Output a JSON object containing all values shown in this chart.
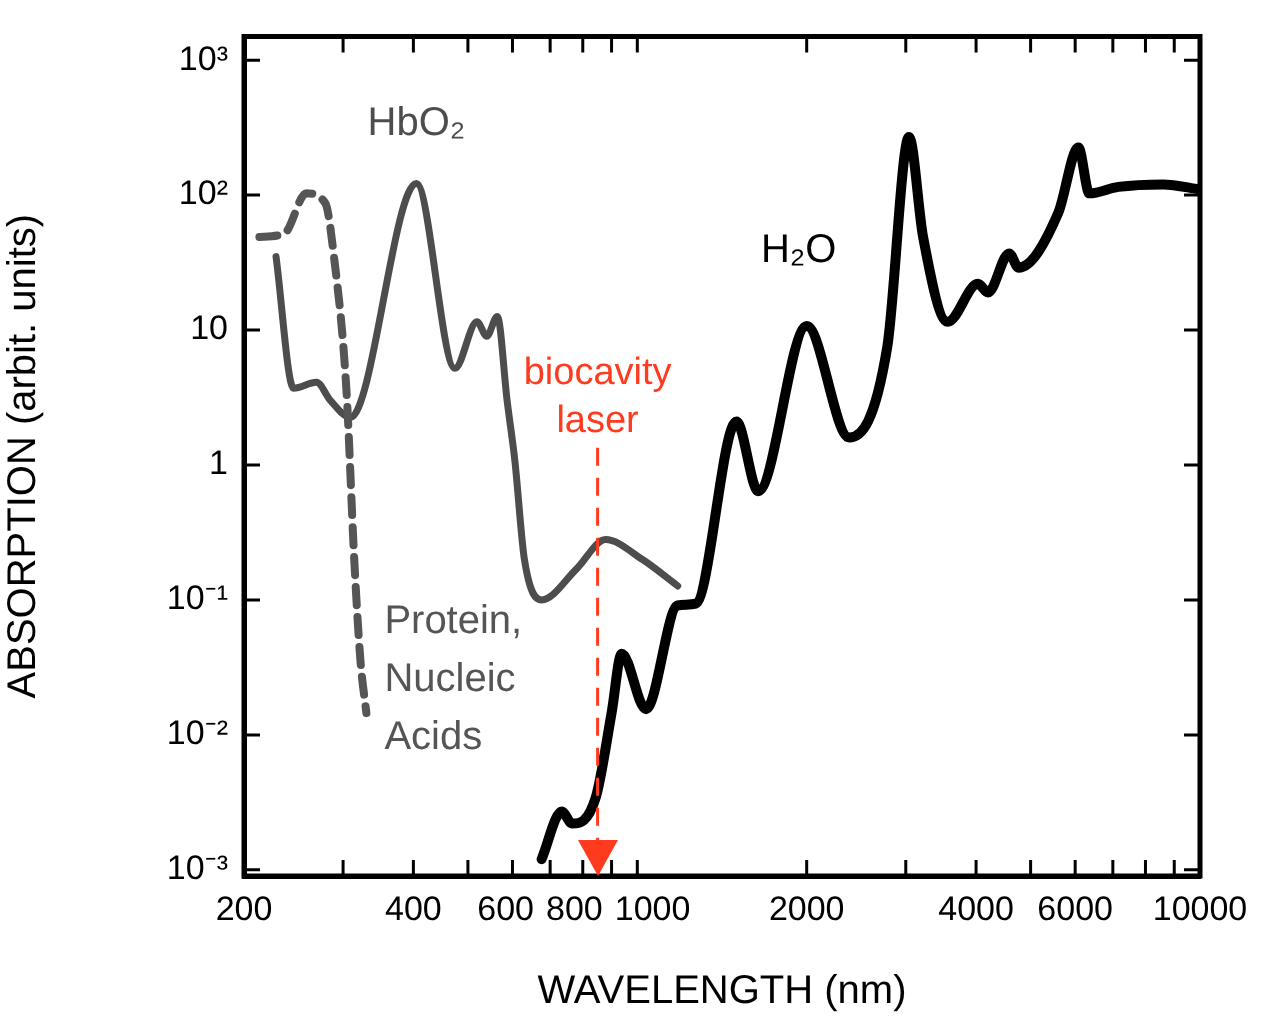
{
  "chart_data": {
    "type": "line",
    "xlabel": "WAVELENGTH (nm)",
    "ylabel": "ABSORPTION (arbit. units)",
    "log": "xy",
    "grid": false,
    "legend": false,
    "marker": "none",
    "xlim": [
      200,
      10000
    ],
    "ylim": [
      0.0009,
      1500
    ],
    "xticks": [
      200,
      {
        "value": 300,
        "label": null
      },
      400,
      {
        "value": 500,
        "label": null
      },
      600,
      {
        "value": 700,
        "label": null
      },
      800,
      {
        "value": 900,
        "label": null
      },
      1000,
      2000,
      {
        "value": 3000,
        "label": null
      },
      4000,
      {
        "value": 5000,
        "label": null
      },
      6000,
      {
        "value": 7000,
        "label": null
      },
      {
        "value": 8000,
        "label": null
      },
      {
        "value": 9000,
        "label": null
      },
      10000
    ],
    "yticks": [
      {
        "value": 0.001,
        "label": "10⁻³"
      },
      {
        "value": 0.01,
        "label": "10⁻²"
      },
      {
        "value": 0.1,
        "label": "10⁻¹"
      },
      1,
      10,
      {
        "value": 100,
        "label": "10²"
      },
      {
        "value": 1000,
        "label": "10³"
      }
    ],
    "series": [
      {
        "name": "Protein, Nucleic Acids",
        "color": "#555555",
        "line_style": "dashed",
        "x": [
          213,
          236,
          258,
          279,
          289,
          304,
          314,
          322,
          330
        ],
        "values": [
          49,
          52,
          103,
          87,
          35,
          3.7,
          0.2,
          0.036,
          0.0145
        ]
      },
      {
        "name": "HbO₂",
        "color": "#4d4d4d",
        "line_style": "solid",
        "x": [
          228,
          245,
          269,
          285,
          309,
          405,
          474,
          519,
          540,
          564,
          587,
          606,
          630,
          676,
          780,
          878,
          1020,
          1180
        ],
        "values": [
          35,
          3.7,
          4.1,
          3,
          2.25,
          122,
          5.2,
          11.5,
          9,
          12.6,
          3,
          1.07,
          0.2,
          0.1,
          0.17,
          0.28,
          0.2,
          0.127
        ]
      },
      {
        "name": "H₂O",
        "color": "#000000",
        "line_style": "solid",
        "x": [
          676,
          734,
          766,
          843,
          900,
          938,
          1036,
          1180,
          1270,
          1500,
          1640,
          2000,
          2380,
          2780,
          3040,
          3220,
          3560,
          4030,
          4200,
          4580,
          4760,
          5600,
          6080,
          6360,
          7160,
          8600,
          10000
        ],
        "values": [
          0.0012,
          0.0027,
          0.0022,
          0.0034,
          0.0145,
          0.04,
          0.0155,
          0.091,
          0.094,
          2.1,
          0.64,
          10.7,
          1.6,
          7.4,
          270,
          49,
          11.5,
          22,
          19,
          37,
          29,
          74,
          225,
          103,
          115,
          120,
          110
        ]
      }
    ],
    "ref_lines": [
      {
        "axis": "x",
        "value": 850,
        "label": "biocavity laser",
        "color": "#ff3b1f",
        "line_style": "dashed"
      }
    ]
  }
}
